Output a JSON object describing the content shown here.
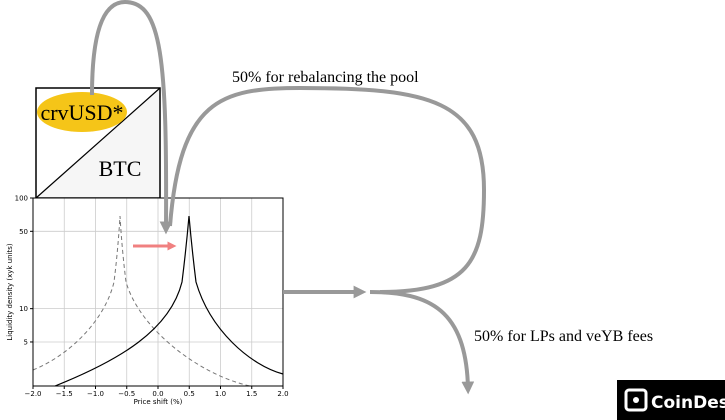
{
  "box": {
    "top_label": "crvUSD*",
    "bottom_label": "BTC"
  },
  "flows": {
    "rebalance": "50% for rebalancing the pool",
    "lps": "50% for LPs and veYB fees"
  },
  "chart": {
    "y_label": "Liquidity density (xyk units)",
    "x_label": "Price shift (%)",
    "xlim": [
      -2,
      2
    ],
    "ylim": [
      2,
      100
    ],
    "log_y": true,
    "grid": true,
    "xticks": [
      {
        "value": -2,
        "label": "−2.0"
      },
      {
        "value": -1.5,
        "label": "−1.5"
      },
      {
        "value": -1,
        "label": "−1.0"
      },
      {
        "value": -0.5,
        "label": "−0.5"
      },
      {
        "value": 0,
        "label": "0.0"
      },
      {
        "value": 0.5,
        "label": "0.5"
      },
      {
        "value": 1,
        "label": "1.0"
      },
      {
        "value": 1.5,
        "label": "1.5"
      },
      {
        "value": 2,
        "label": "2.0"
      }
    ],
    "yticks": [
      5,
      10,
      50,
      100
    ]
  },
  "logo": "CoinDes"
}
